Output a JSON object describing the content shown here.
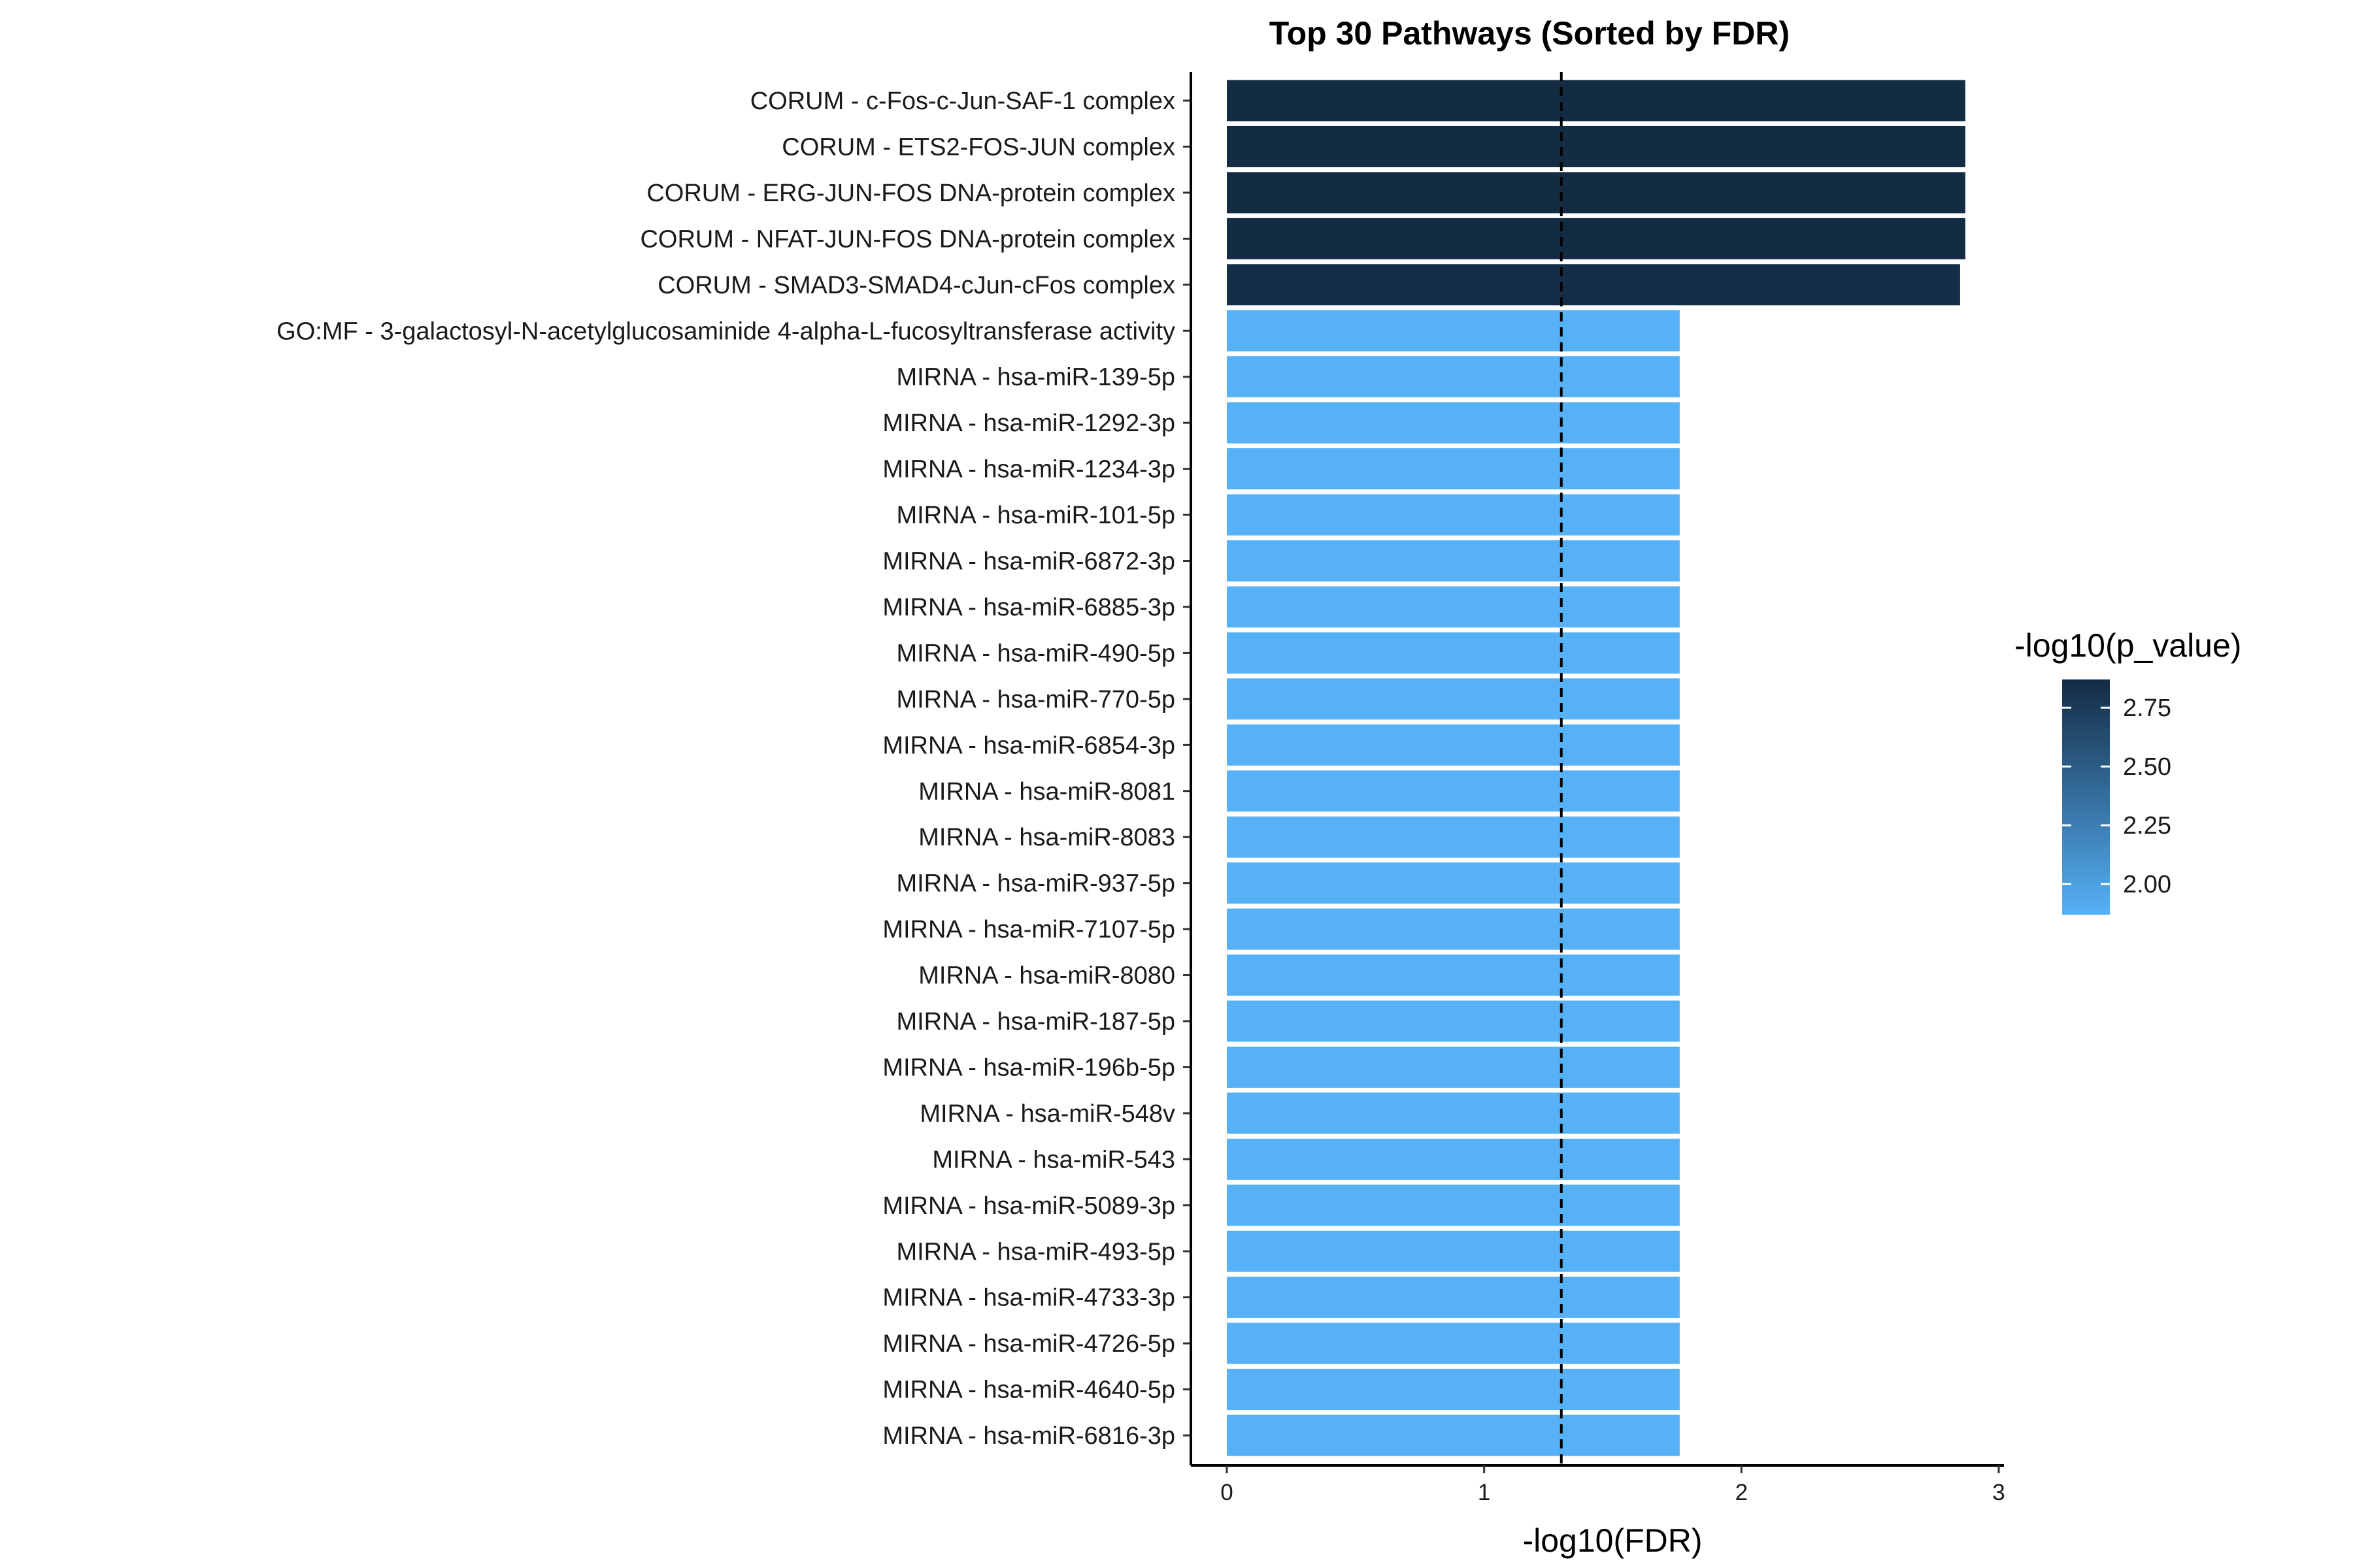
{
  "chart_data": {
    "type": "bar",
    "orientation": "horizontal",
    "title": "Top 30 Pathways (Sorted by FDR)",
    "xlabel": "-log10(FDR)",
    "ylabel": "",
    "xlim": [
      0,
      3
    ],
    "x_ticks": [
      "0",
      "1",
      "2",
      "3"
    ],
    "threshold_line": {
      "value": 1.3,
      "style": "dashed"
    },
    "categories": [
      "CORUM - c-Fos-c-Jun-SAF-1 complex",
      "CORUM - ETS2-FOS-JUN complex",
      "CORUM - ERG-JUN-FOS DNA-protein complex",
      "CORUM - NFAT-JUN-FOS DNA-protein complex",
      "CORUM - SMAD3-SMAD4-cJun-cFos complex",
      "GO:MF - 3-galactosyl-N-acetylglucosaminide 4-alpha-L-fucosyltransferase activity",
      "MIRNA - hsa-miR-139-5p",
      "MIRNA - hsa-miR-1292-3p",
      "MIRNA - hsa-miR-1234-3p",
      "MIRNA - hsa-miR-101-5p",
      "MIRNA - hsa-miR-6872-3p",
      "MIRNA - hsa-miR-6885-3p",
      "MIRNA - hsa-miR-490-5p",
      "MIRNA - hsa-miR-770-5p",
      "MIRNA - hsa-miR-6854-3p",
      "MIRNA - hsa-miR-8081",
      "MIRNA - hsa-miR-8083",
      "MIRNA - hsa-miR-937-5p",
      "MIRNA - hsa-miR-7107-5p",
      "MIRNA - hsa-miR-8080",
      "MIRNA - hsa-miR-187-5p",
      "MIRNA - hsa-miR-196b-5p",
      "MIRNA - hsa-miR-548v",
      "MIRNA - hsa-miR-543",
      "MIRNA - hsa-miR-5089-3p",
      "MIRNA - hsa-miR-493-5p",
      "MIRNA - hsa-miR-4733-3p",
      "MIRNA - hsa-miR-4726-5p",
      "MIRNA - hsa-miR-4640-5p",
      "MIRNA - hsa-miR-6816-3p"
    ],
    "values": [
      2.87,
      2.87,
      2.87,
      2.87,
      2.85,
      1.76,
      1.76,
      1.76,
      1.76,
      1.76,
      1.76,
      1.76,
      1.76,
      1.76,
      1.76,
      1.76,
      1.76,
      1.76,
      1.76,
      1.76,
      1.76,
      1.76,
      1.76,
      1.76,
      1.76,
      1.76,
      1.76,
      1.76,
      1.76,
      1.76
    ],
    "color_values": [
      2.87,
      2.87,
      2.87,
      2.87,
      2.85,
      1.87,
      1.87,
      1.87,
      1.87,
      1.87,
      1.87,
      1.87,
      1.87,
      1.87,
      1.87,
      1.87,
      1.87,
      1.87,
      1.87,
      1.87,
      1.87,
      1.87,
      1.87,
      1.87,
      1.87,
      1.87,
      1.87,
      1.87,
      1.87,
      1.87
    ],
    "legend": {
      "title": "-log10(p_value)",
      "placement": "right",
      "range": [
        1.87,
        2.87
      ],
      "ticks": [
        "2.00",
        "2.25",
        "2.50",
        "2.75"
      ],
      "low_color": "#56B1F7",
      "high_color": "#132B43"
    },
    "grid": false
  }
}
